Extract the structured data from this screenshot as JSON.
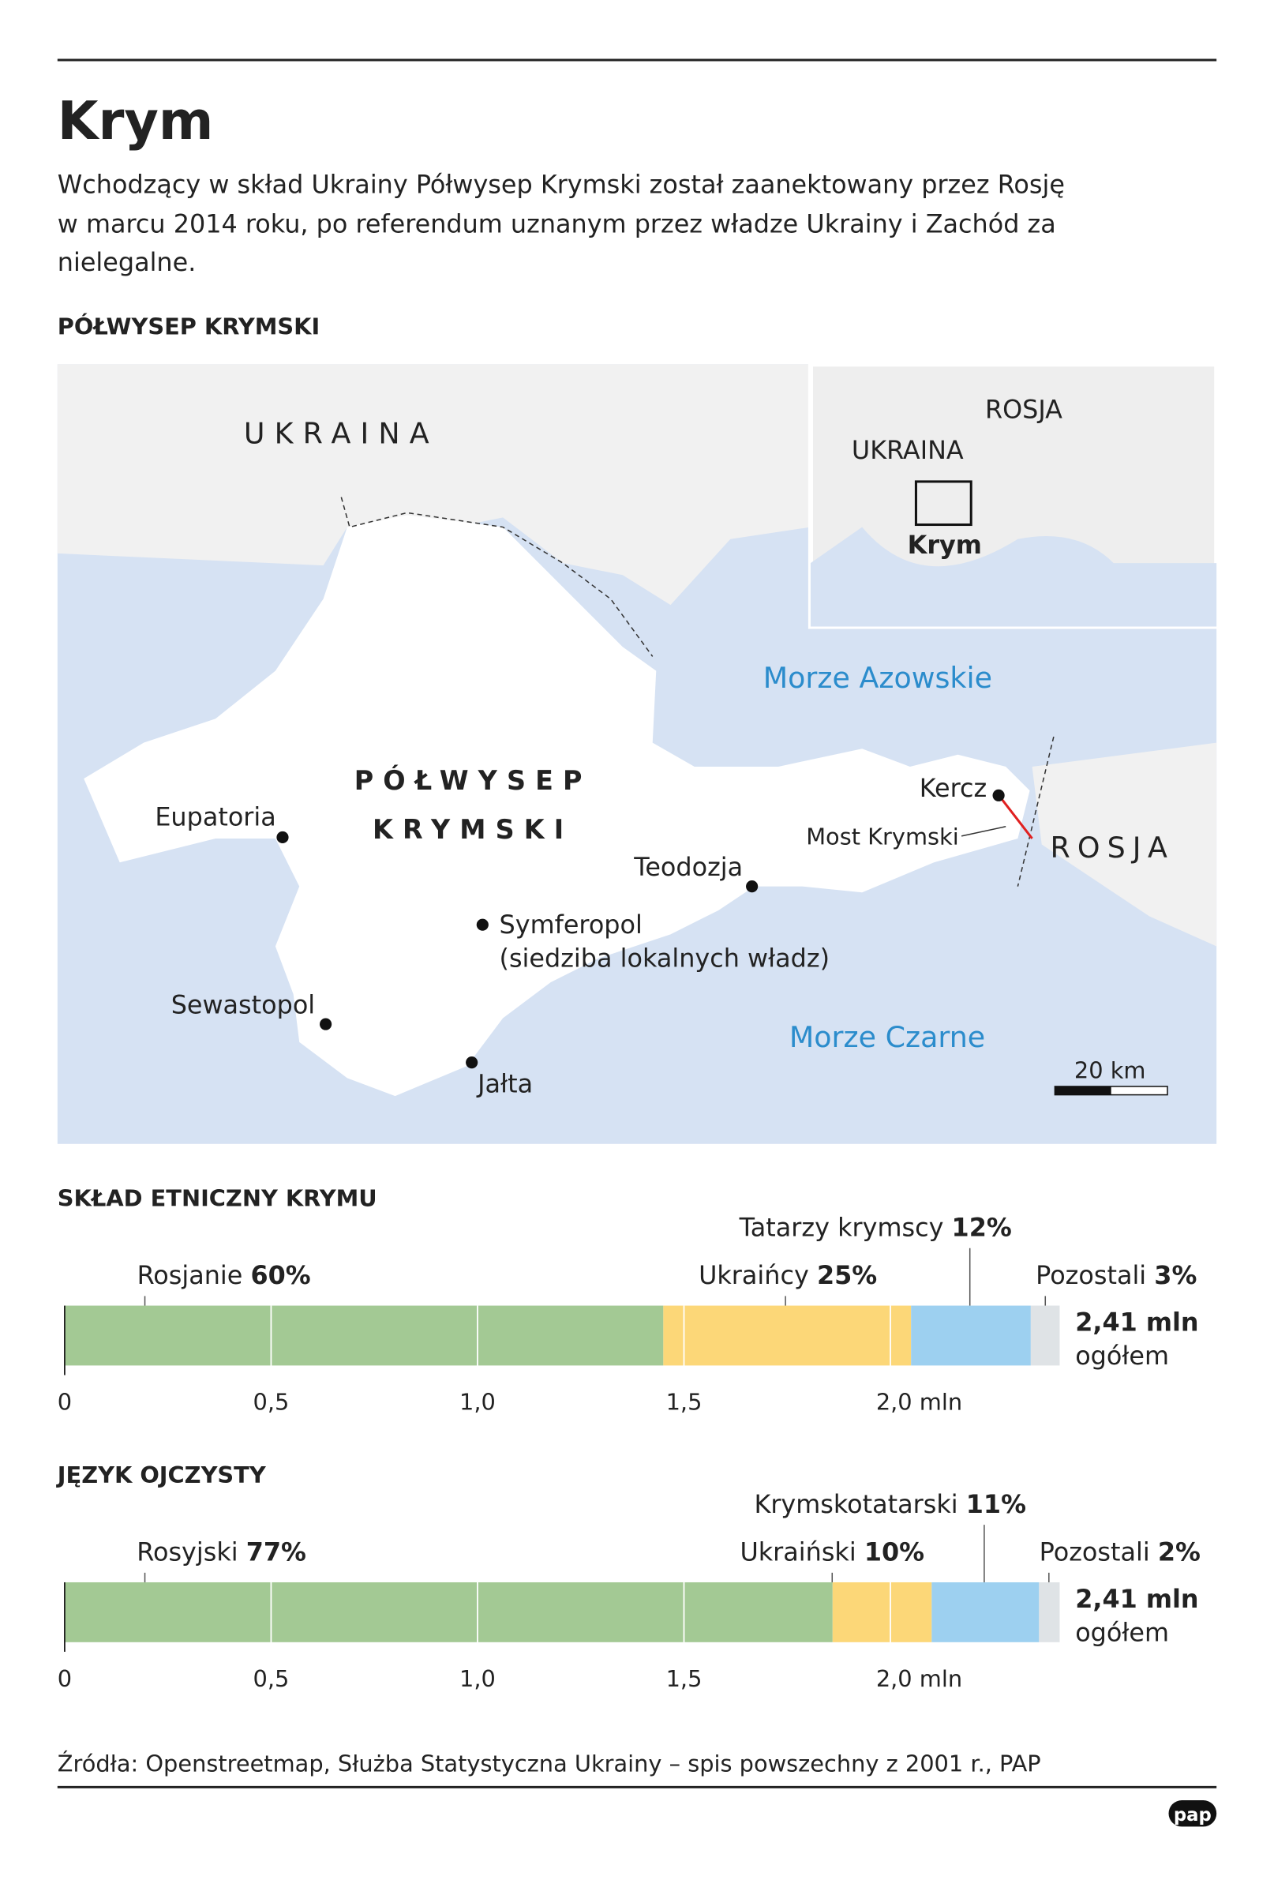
{
  "header": {
    "title": "Krym",
    "description": [
      "Wchodzący w skład Ukrainy Półwysep Krymski został zaanektowany przez Rosję",
      "w marcu 2014 roku, po referendum uznanym przez władze Ukrainy i Zachód za",
      "nielegalne."
    ]
  },
  "map": {
    "title": "PÓŁWYSEP KRYMSKI",
    "ukraina": "UKRAINA",
    "azov": "Morze Azowskie",
    "peninsula": [
      "PÓŁWYSEP",
      "KRYMSKI"
    ],
    "eupatoria": "Eupatoria",
    "teodozja": "Teodozja",
    "symferopol": "Symferopol",
    "symferopol_note": "(siedziba lokalnych władz)",
    "sewastopol": "Sewastopol",
    "jalta": "Jałta",
    "black_sea": "Morze Czarne",
    "kercz": "Kercz",
    "bridge": "Most Krymski",
    "rosja": "ROSJA",
    "scale": "20 km",
    "inset": {
      "rosja": "ROSJA",
      "ukraina": "UKRAINA",
      "krym": "Krym"
    }
  },
  "chart_data": [
    {
      "type": "stacked_bar",
      "title": "SKŁAD ETNICZNY KRYMU",
      "categories": [
        null
      ],
      "series": [
        {
          "name": "Rosjanie",
          "color": "#a3c994",
          "values": [
            1.45
          ],
          "value_labels": [
            "60%"
          ]
        },
        {
          "name": "Ukraińcy",
          "color": "#fcd778",
          "values": [
            0.6
          ],
          "value_labels": [
            "25%"
          ]
        },
        {
          "name": "Tatarzy krymscy",
          "color": "#9dd0f0",
          "values": [
            0.29
          ],
          "value_labels": [
            "12%"
          ]
        },
        {
          "name": "Pozostali",
          "color": "#dfe3e6",
          "values": [
            0.07
          ],
          "value_labels": [
            "3%"
          ]
        }
      ],
      "xlim": [
        0,
        2.41
      ],
      "xticks": [
        0,
        {
          "value": 0.5,
          "label": "0,5"
        },
        {
          "value": 1,
          "label": "1,0"
        },
        {
          "value": 1.5,
          "label": "1,5"
        },
        {
          "value": 2,
          "label": "2,0 mln"
        }
      ],
      "total_label": "2,41 mln",
      "total_note": "ogółem"
    },
    {
      "type": "stacked_bar",
      "title": "JĘZYK OJCZYSTY",
      "categories": [
        null
      ],
      "series": [
        {
          "name": "Rosyjski",
          "color": "#a3c994",
          "values": [
            1.86
          ],
          "value_labels": [
            "77%"
          ]
        },
        {
          "name": "Ukraiński",
          "color": "#fcd778",
          "values": [
            0.24
          ],
          "value_labels": [
            "10%"
          ]
        },
        {
          "name": "Krymskotatarski",
          "color": "#9dd0f0",
          "values": [
            0.26
          ],
          "value_labels": [
            "11%"
          ]
        },
        {
          "name": "Pozostali",
          "color": "#dfe3e6",
          "values": [
            0.05
          ],
          "value_labels": [
            "2%"
          ]
        }
      ],
      "xlim": [
        0,
        2.41
      ],
      "xticks": [
        0,
        {
          "value": 0.5,
          "label": "0,5"
        },
        {
          "value": 1,
          "label": "1,0"
        },
        {
          "value": 1.5,
          "label": "1,5"
        },
        {
          "value": 2,
          "label": "2,0 mln"
        }
      ],
      "total_label": "2,41 mln",
      "total_note": "ogółem"
    }
  ],
  "footer": {
    "source": "Źródła: Openstreetmap, Służba Statystyczna Ukrainy – spis powszechny z 2001 r., PAP",
    "logo": "pap"
  }
}
